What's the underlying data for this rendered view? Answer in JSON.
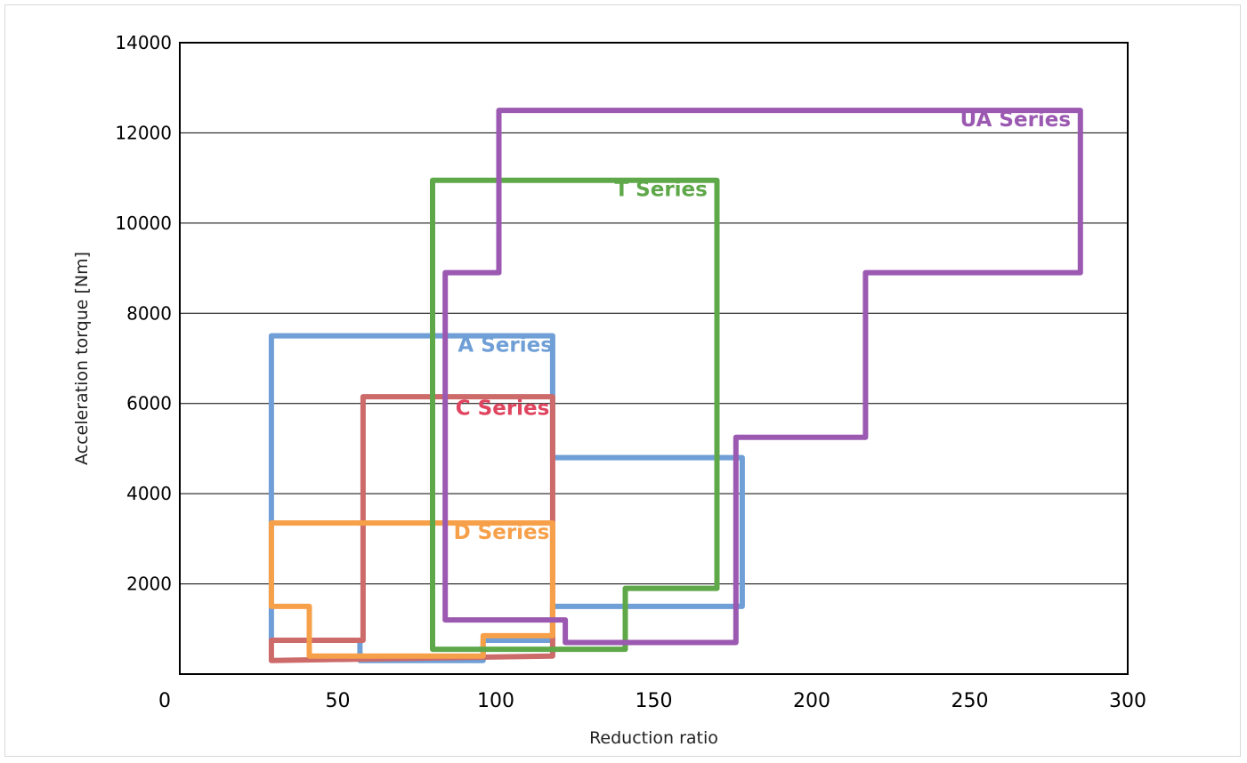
{
  "chart_data": {
    "type": "area",
    "title": "",
    "xlabel": "Reduction ratio",
    "ylabel": "Acceleration torque [Nm]",
    "xlim": [
      0,
      300
    ],
    "ylim": [
      0,
      14000
    ],
    "x_ticks": [
      "0",
      "50",
      "100",
      "150",
      "200",
      "250",
      "300"
    ],
    "y_ticks": [
      "2000",
      "4000",
      "6000",
      "8000",
      "10000",
      "12000",
      "14000"
    ],
    "grid": "horizontal",
    "legend": "none",
    "series": [
      {
        "name": "A Series",
        "color": "#6f9fd6",
        "label_at": [
          118,
          7150
        ],
        "points": [
          [
            29,
            7500
          ],
          [
            118,
            7500
          ],
          [
            118,
            4800
          ],
          [
            178,
            4800
          ],
          [
            178,
            1500
          ],
          [
            118,
            1500
          ],
          [
            118,
            750
          ],
          [
            96,
            750
          ],
          [
            96,
            300
          ],
          [
            57,
            300
          ],
          [
            57,
            750
          ],
          [
            29,
            750
          ],
          [
            29,
            7500
          ]
        ]
      },
      {
        "name": "C Series",
        "color": "#cd6a6a",
        "label_at": [
          117,
          5750
        ],
        "points": [
          [
            58,
            6150
          ],
          [
            118,
            6150
          ],
          [
            118,
            400
          ],
          [
            29,
            300
          ],
          [
            29,
            750
          ],
          [
            58,
            750
          ],
          [
            58,
            6150
          ]
        ]
      },
      {
        "name": "D Series",
        "color": "#f7a04a",
        "label_at": [
          117,
          3000
        ],
        "points": [
          [
            29,
            3350
          ],
          [
            118,
            3350
          ],
          [
            118,
            850
          ],
          [
            96,
            850
          ],
          [
            96,
            400
          ],
          [
            41,
            400
          ],
          [
            41,
            1500
          ],
          [
            29,
            1500
          ],
          [
            29,
            3350
          ]
        ]
      },
      {
        "name": "T Series",
        "color": "#5fa84a",
        "label_at": [
          167,
          10600
        ],
        "points": [
          [
            80,
            10950
          ],
          [
            170,
            10950
          ],
          [
            170,
            1900
          ],
          [
            141,
            1900
          ],
          [
            141,
            550
          ],
          [
            80,
            550
          ],
          [
            80,
            10950
          ]
        ]
      },
      {
        "name": "UA Series",
        "color": "#9b59b1",
        "label_at": [
          282,
          12150
        ],
        "points": [
          [
            101,
            12500
          ],
          [
            285,
            12500
          ],
          [
            285,
            8900
          ],
          [
            217,
            8900
          ],
          [
            217,
            5250
          ],
          [
            176,
            5250
          ],
          [
            176,
            700
          ],
          [
            122,
            700
          ],
          [
            122,
            1200
          ],
          [
            84,
            1200
          ],
          [
            84,
            8900
          ],
          [
            101,
            8900
          ],
          [
            101,
            12500
          ]
        ]
      }
    ]
  }
}
